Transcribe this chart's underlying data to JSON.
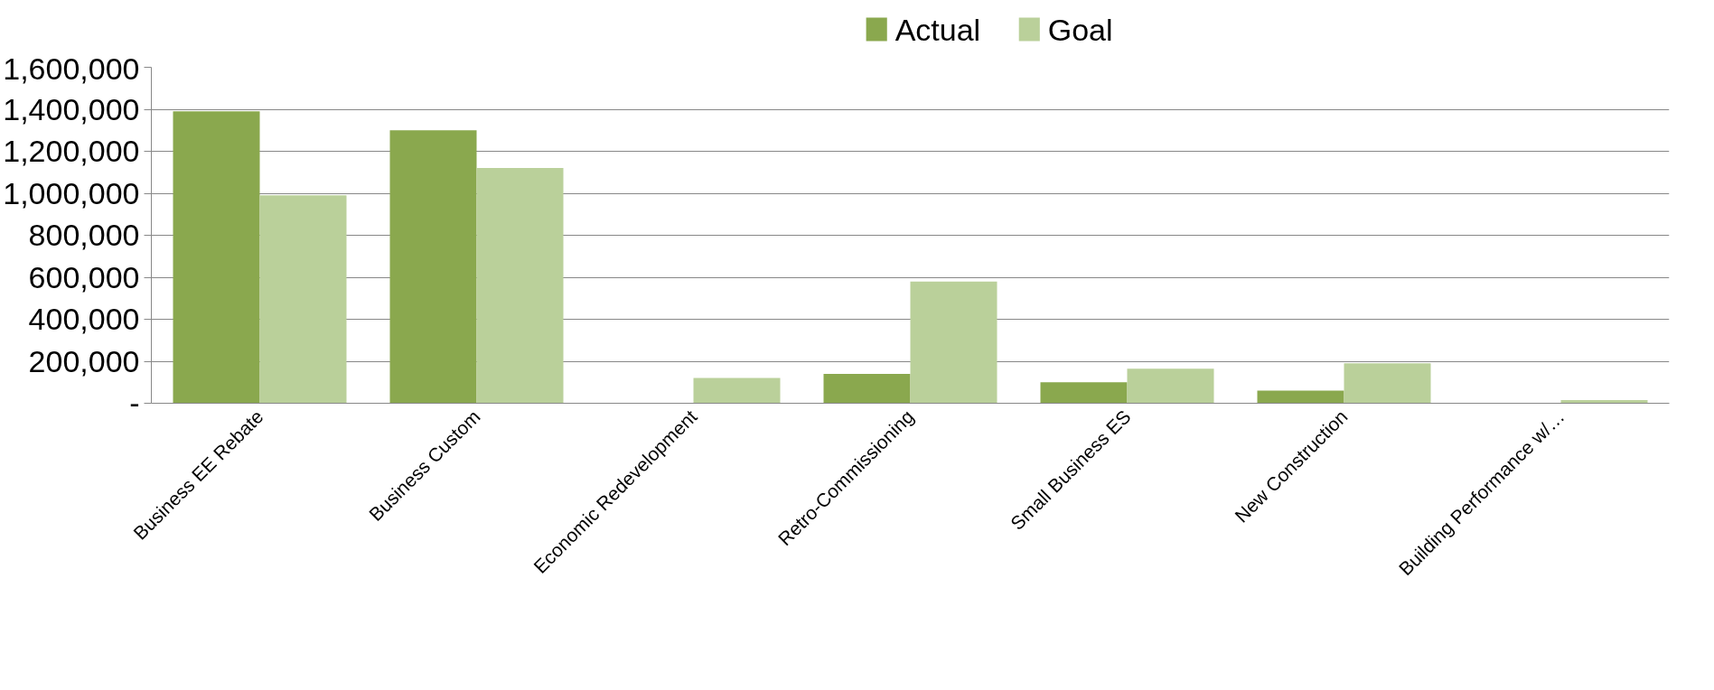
{
  "chart_data": {
    "type": "bar",
    "categories": [
      "Business EE Rebate",
      "Business Custom",
      "Economic Redevelopment",
      "Retro-Commissioning",
      "Small Business ES",
      "New Construction",
      "Building Performance w/…"
    ],
    "series": [
      {
        "name": "Actual",
        "color": "#8aa84e",
        "values": [
          1390000,
          1300000,
          0,
          140000,
          100000,
          60000,
          0
        ]
      },
      {
        "name": "Goal",
        "color": "#bad09a",
        "values": [
          990000,
          1120000,
          120000,
          580000,
          165000,
          190000,
          15000
        ]
      }
    ],
    "ylim": [
      0,
      1600000
    ],
    "yticks": [
      {
        "value": 0,
        "label": "-"
      },
      {
        "value": 200000,
        "label": "200,000"
      },
      {
        "value": 400000,
        "label": "400,000"
      },
      {
        "value": 600000,
        "label": "600,000"
      },
      {
        "value": 800000,
        "label": "800,000"
      },
      {
        "value": 1000000,
        "label": "1,000,000"
      },
      {
        "value": 1200000,
        "label": "1,200,000"
      },
      {
        "value": 1400000,
        "label": "1,400,000"
      },
      {
        "value": 1600000,
        "label": "1,600,000"
      }
    ],
    "grid": "y",
    "legend": "top"
  }
}
